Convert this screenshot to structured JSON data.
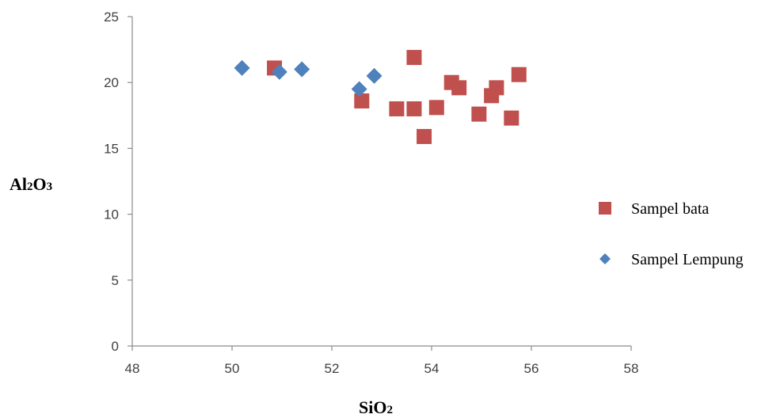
{
  "chart_data": {
    "type": "scatter",
    "title": "",
    "xlabel": {
      "main": "SiO",
      "sub": "2"
    },
    "ylabel": {
      "parts": [
        "Al",
        "2",
        "O",
        "3"
      ]
    },
    "xlim": [
      48,
      58
    ],
    "ylim": [
      0,
      25
    ],
    "xticks": [
      48,
      50,
      52,
      54,
      56,
      58
    ],
    "yticks": [
      0,
      5,
      10,
      15,
      20,
      25
    ],
    "grid": false,
    "legend_position": "right",
    "series": [
      {
        "name": "Sampel bata",
        "marker": "square",
        "color": "#c0504d",
        "points": [
          {
            "x": 50.85,
            "y": 21.1
          },
          {
            "x": 52.6,
            "y": 18.6
          },
          {
            "x": 53.3,
            "y": 18.0
          },
          {
            "x": 53.65,
            "y": 18.0
          },
          {
            "x": 53.65,
            "y": 21.9
          },
          {
            "x": 53.85,
            "y": 15.9
          },
          {
            "x": 54.1,
            "y": 18.1
          },
          {
            "x": 54.4,
            "y": 20.0
          },
          {
            "x": 54.55,
            "y": 19.6
          },
          {
            "x": 54.95,
            "y": 17.6
          },
          {
            "x": 55.2,
            "y": 19.0
          },
          {
            "x": 55.3,
            "y": 19.6
          },
          {
            "x": 55.6,
            "y": 17.3
          },
          {
            "x": 55.75,
            "y": 20.6
          }
        ]
      },
      {
        "name": "Sampel Lempung",
        "marker": "diamond",
        "color": "#4f81bd",
        "points": [
          {
            "x": 50.2,
            "y": 21.1
          },
          {
            "x": 50.95,
            "y": 20.8
          },
          {
            "x": 51.4,
            "y": 21.0
          },
          {
            "x": 52.55,
            "y": 19.5
          },
          {
            "x": 52.85,
            "y": 20.5
          }
        ]
      }
    ]
  }
}
